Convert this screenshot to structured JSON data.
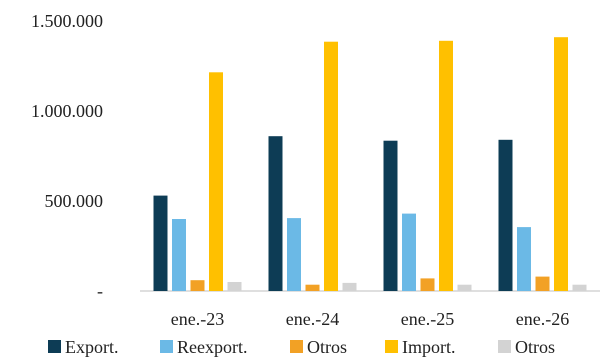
{
  "chart_data": {
    "type": "bar",
    "categories": [
      "ene.-23",
      "ene.-24",
      "ene.-25",
      "ene.-26"
    ],
    "series": [
      {
        "name": "Export.",
        "color": "#0d3c55",
        "values": [
          530000,
          860000,
          835000,
          840000
        ]
      },
      {
        "name": "Reexport.",
        "color": "#6bb9e6",
        "values": [
          400000,
          405000,
          430000,
          355000
        ]
      },
      {
        "name": "Otros",
        "color": "#f2a125",
        "values": [
          60000,
          35000,
          70000,
          80000
        ]
      },
      {
        "name": "Import.",
        "color": "#ffc000",
        "values": [
          1215000,
          1385000,
          1390000,
          1410000
        ]
      },
      {
        "name": "Otros",
        "color": "#d3d3d3",
        "values": [
          50000,
          45000,
          35000,
          35000
        ]
      }
    ],
    "yticks": [
      {
        "value": 0,
        "label": "-"
      },
      {
        "value": 500000,
        "label": "500.000"
      },
      {
        "value": 1000000,
        "label": "1.000.000"
      },
      {
        "value": 1500000,
        "label": "1.500.000"
      }
    ],
    "ylim": [
      0,
      1500000
    ],
    "grid": false,
    "legend_position": "bottom"
  }
}
